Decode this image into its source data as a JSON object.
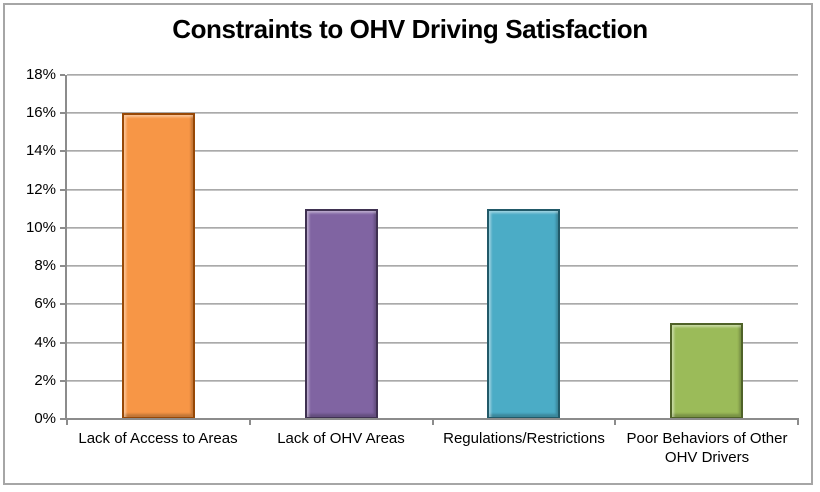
{
  "chart_data": {
    "type": "bar",
    "title": "Constraints to OHV Driving Satisfaction",
    "categories": [
      "Lack of Access to Areas",
      "Lack of OHV Areas",
      "Regulations/Restrictions",
      "Poor Behaviors of Other OHV Drivers"
    ],
    "values": [
      16,
      11,
      11,
      5
    ],
    "value_unit": "%",
    "xlabel": "",
    "ylabel": "",
    "ylim": [
      0,
      18
    ],
    "ytick_step": 2,
    "ytick_labels": [
      "0%",
      "2%",
      "4%",
      "6%",
      "8%",
      "10%",
      "12%",
      "14%",
      "16%",
      "18%"
    ],
    "grid": true,
    "legend": false,
    "bar_colors": [
      "#F79646",
      "#8064A2",
      "#4BACC6",
      "#9BBB59"
    ],
    "bar_border_colors": [
      "#974806",
      "#3F3151",
      "#215968",
      "#4F6228"
    ],
    "gridline_color": "#a6a6a6",
    "axis_color": "#8c8c8c",
    "text_color": "#000000",
    "background_color": "#ffffff",
    "frame_border_color": "#a6a6a6"
  }
}
